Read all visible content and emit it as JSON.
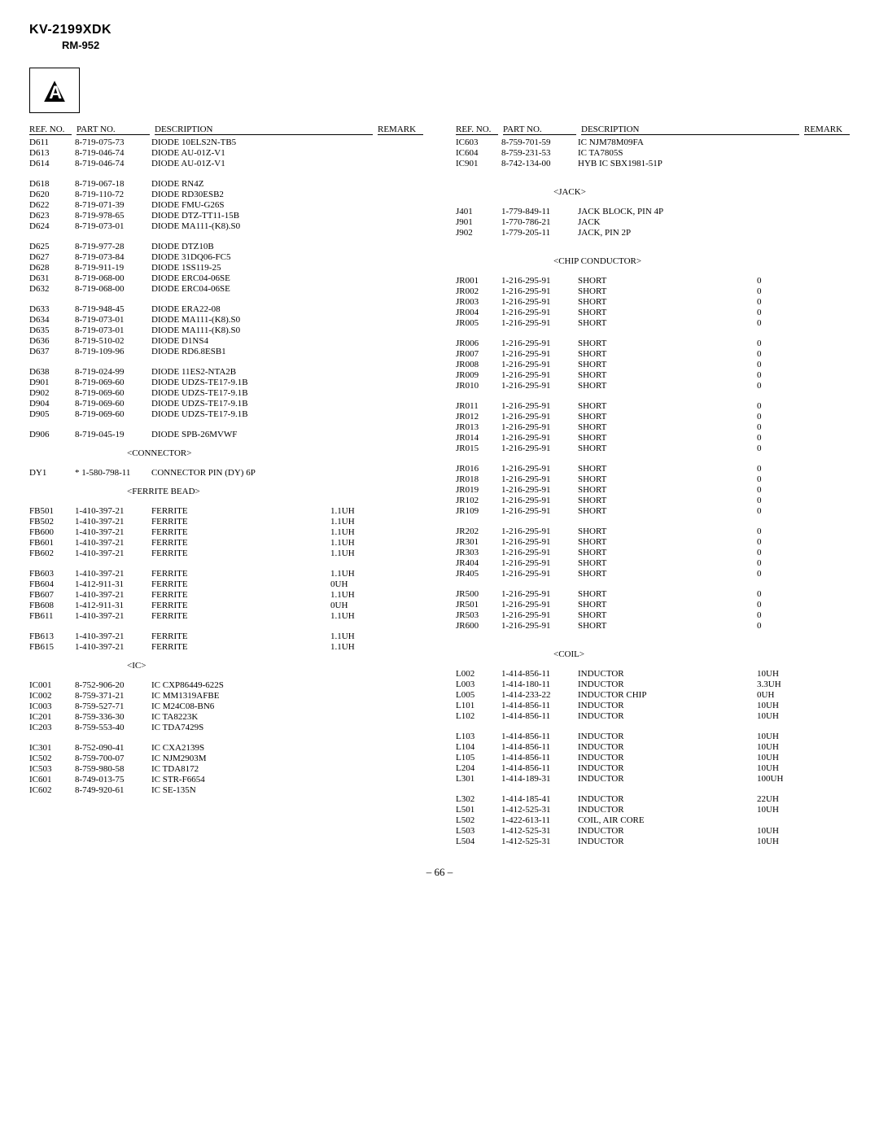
{
  "header": {
    "model": "KV-2199XDK",
    "sub": "RM-952",
    "triangle_letter": "A"
  },
  "col_headers": {
    "ref": "REF. NO.",
    "part": "PART NO.",
    "desc": "DESCRIPTION",
    "remark": "REMARK"
  },
  "sections": {
    "connector": "<CONNECTOR>",
    "ferrite": "<FERRITE BEAD>",
    "ic": "<IC>",
    "jack": "<JACK>",
    "chip": "<CHIP CONDUCTOR>",
    "coil": "<COIL>"
  },
  "left": {
    "g1": [
      {
        "ref": "D611",
        "part": "8-719-075-73",
        "desc": "DIODE 10ELS2N-TB5"
      },
      {
        "ref": "D613",
        "part": "8-719-046-74",
        "desc": "DIODE AU-01Z-V1"
      },
      {
        "ref": "D614",
        "part": "8-719-046-74",
        "desc": "DIODE AU-01Z-V1"
      }
    ],
    "g2": [
      {
        "ref": "D618",
        "part": "8-719-067-18",
        "desc": "DIODE RN4Z"
      },
      {
        "ref": "D620",
        "part": "8-719-110-72",
        "desc": "DIODE RD30ESB2"
      },
      {
        "ref": "D622",
        "part": "8-719-071-39",
        "desc": "DIODE FMU-G26S"
      },
      {
        "ref": "D623",
        "part": "8-719-978-65",
        "desc": "DIODE DTZ-TT11-15B"
      },
      {
        "ref": "D624",
        "part": "8-719-073-01",
        "desc": "DIODE MA111-(K8).S0"
      }
    ],
    "g3": [
      {
        "ref": "D625",
        "part": "8-719-977-28",
        "desc": "DIODE DTZ10B"
      },
      {
        "ref": "D627",
        "part": "8-719-073-84",
        "desc": "DIODE 31DQ06-FC5"
      },
      {
        "ref": "D628",
        "part": "8-719-911-19",
        "desc": "DIODE 1SS119-25"
      },
      {
        "ref": "D631",
        "part": "8-719-068-00",
        "desc": "DIODE ERC04-06SE"
      },
      {
        "ref": "D632",
        "part": "8-719-068-00",
        "desc": "DIODE ERC04-06SE"
      }
    ],
    "g4": [
      {
        "ref": "D633",
        "part": "8-719-948-45",
        "desc": "DIODE ERA22-08"
      },
      {
        "ref": "D634",
        "part": "8-719-073-01",
        "desc": "DIODE MA111-(K8).S0"
      },
      {
        "ref": "D635",
        "part": "8-719-073-01",
        "desc": "DIODE MA111-(K8).S0"
      },
      {
        "ref": "D636",
        "part": "8-719-510-02",
        "desc": "DIODE D1NS4"
      },
      {
        "ref": "D637",
        "part": "8-719-109-96",
        "desc": "DIODE RD6.8ESB1"
      }
    ],
    "g5": [
      {
        "ref": "D638",
        "part": "8-719-024-99",
        "desc": "DIODE 11ES2-NTA2B"
      },
      {
        "ref": "D901",
        "part": "8-719-069-60",
        "desc": "DIODE UDZS-TE17-9.1B"
      },
      {
        "ref": "D902",
        "part": "8-719-069-60",
        "desc": "DIODE UDZS-TE17-9.1B"
      },
      {
        "ref": "D904",
        "part": "8-719-069-60",
        "desc": "DIODE UDZS-TE17-9.1B"
      },
      {
        "ref": "D905",
        "part": "8-719-069-60",
        "desc": "DIODE UDZS-TE17-9.1B"
      }
    ],
    "g6": [
      {
        "ref": "D906",
        "part": "8-719-045-19",
        "desc": "DIODE SPB-26MVWF"
      }
    ],
    "g7": [
      {
        "ref": "DY1",
        "part": "* 1-580-798-11",
        "desc": "CONNECTOR PIN (DY) 6P"
      }
    ],
    "g8": [
      {
        "ref": "FB501",
        "part": "1-410-397-21",
        "desc": "FERRITE",
        "val": "1.1UH"
      },
      {
        "ref": "FB502",
        "part": "1-410-397-21",
        "desc": "FERRITE",
        "val": "1.1UH"
      },
      {
        "ref": "FB600",
        "part": "1-410-397-21",
        "desc": "FERRITE",
        "val": "1.1UH"
      },
      {
        "ref": "FB601",
        "part": "1-410-397-21",
        "desc": "FERRITE",
        "val": "1.1UH"
      },
      {
        "ref": "FB602",
        "part": "1-410-397-21",
        "desc": "FERRITE",
        "val": "1.1UH"
      }
    ],
    "g9": [
      {
        "ref": "FB603",
        "part": "1-410-397-21",
        "desc": "FERRITE",
        "val": "1.1UH"
      },
      {
        "ref": "FB604",
        "part": "1-412-911-31",
        "desc": "FERRITE",
        "val": "0UH"
      },
      {
        "ref": "FB607",
        "part": "1-410-397-21",
        "desc": "FERRITE",
        "val": "1.1UH"
      },
      {
        "ref": "FB608",
        "part": "1-412-911-31",
        "desc": "FERRITE",
        "val": "0UH"
      },
      {
        "ref": "FB611",
        "part": "1-410-397-21",
        "desc": "FERRITE",
        "val": "1.1UH"
      }
    ],
    "g10": [
      {
        "ref": "FB613",
        "part": "1-410-397-21",
        "desc": "FERRITE",
        "val": "1.1UH"
      },
      {
        "ref": "FB615",
        "part": "1-410-397-21",
        "desc": "FERRITE",
        "val": "1.1UH"
      }
    ],
    "g11": [
      {
        "ref": "IC001",
        "part": "8-752-906-20",
        "desc": "IC CXP86449-622S"
      },
      {
        "ref": "IC002",
        "part": "8-759-371-21",
        "desc": "IC MM1319AFBE"
      },
      {
        "ref": "IC003",
        "part": "8-759-527-71",
        "desc": "IC M24C08-BN6"
      },
      {
        "ref": "IC201",
        "part": "8-759-336-30",
        "desc": "IC TA8223K"
      },
      {
        "ref": "IC203",
        "part": "8-759-553-40",
        "desc": "IC TDA7429S"
      }
    ],
    "g12": [
      {
        "ref": "IC301",
        "part": "8-752-090-41",
        "desc": "IC CXA2139S"
      },
      {
        "ref": "IC502",
        "part": "8-759-700-07",
        "desc": "IC NJM2903M"
      },
      {
        "ref": "IC503",
        "part": "8-759-980-58",
        "desc": "IC TDA8172"
      },
      {
        "ref": "IC601",
        "part": "8-749-013-75",
        "desc": "IC STR-F6654"
      },
      {
        "ref": "IC602",
        "part": "8-749-920-61",
        "desc": "IC SE-135N"
      }
    ]
  },
  "right": {
    "g1": [
      {
        "ref": "IC603",
        "part": "8-759-701-59",
        "desc": "IC NJM78M09FA"
      },
      {
        "ref": "IC604",
        "part": "8-759-231-53",
        "desc": "IC TA7805S"
      },
      {
        "ref": "IC901",
        "part": "8-742-134-00",
        "desc": "HYB IC SBX1981-51P"
      }
    ],
    "g2": [
      {
        "ref": "J401",
        "part": "1-779-849-11",
        "desc": "JACK BLOCK, PIN 4P"
      },
      {
        "ref": "J901",
        "part": "1-770-786-21",
        "desc": "JACK"
      },
      {
        "ref": "J902",
        "part": "1-779-205-11",
        "desc": "JACK, PIN 2P"
      }
    ],
    "g3": [
      {
        "ref": "JR001",
        "part": "1-216-295-91",
        "desc": "SHORT",
        "val": "0"
      },
      {
        "ref": "JR002",
        "part": "1-216-295-91",
        "desc": "SHORT",
        "val": "0"
      },
      {
        "ref": "JR003",
        "part": "1-216-295-91",
        "desc": "SHORT",
        "val": "0"
      },
      {
        "ref": "JR004",
        "part": "1-216-295-91",
        "desc": "SHORT",
        "val": "0"
      },
      {
        "ref": "JR005",
        "part": "1-216-295-91",
        "desc": "SHORT",
        "val": "0"
      }
    ],
    "g4": [
      {
        "ref": "JR006",
        "part": "1-216-295-91",
        "desc": "SHORT",
        "val": "0"
      },
      {
        "ref": "JR007",
        "part": "1-216-295-91",
        "desc": "SHORT",
        "val": "0"
      },
      {
        "ref": "JR008",
        "part": "1-216-295-91",
        "desc": "SHORT",
        "val": "0"
      },
      {
        "ref": "JR009",
        "part": "1-216-295-91",
        "desc": "SHORT",
        "val": "0"
      },
      {
        "ref": "JR010",
        "part": "1-216-295-91",
        "desc": "SHORT",
        "val": "0"
      }
    ],
    "g5": [
      {
        "ref": "JR011",
        "part": "1-216-295-91",
        "desc": "SHORT",
        "val": "0"
      },
      {
        "ref": "JR012",
        "part": "1-216-295-91",
        "desc": "SHORT",
        "val": "0"
      },
      {
        "ref": "JR013",
        "part": "1-216-295-91",
        "desc": "SHORT",
        "val": "0"
      },
      {
        "ref": "JR014",
        "part": "1-216-295-91",
        "desc": "SHORT",
        "val": "0"
      },
      {
        "ref": "JR015",
        "part": "1-216-295-91",
        "desc": "SHORT",
        "val": "0"
      }
    ],
    "g6": [
      {
        "ref": "JR016",
        "part": "1-216-295-91",
        "desc": "SHORT",
        "val": "0"
      },
      {
        "ref": "JR018",
        "part": "1-216-295-91",
        "desc": "SHORT",
        "val": "0"
      },
      {
        "ref": "JR019",
        "part": "1-216-295-91",
        "desc": "SHORT",
        "val": "0"
      },
      {
        "ref": "JR102",
        "part": "1-216-295-91",
        "desc": "SHORT",
        "val": "0"
      },
      {
        "ref": "JR109",
        "part": "1-216-295-91",
        "desc": "SHORT",
        "val": "0"
      }
    ],
    "g7": [
      {
        "ref": "JR202",
        "part": "1-216-295-91",
        "desc": "SHORT",
        "val": "0"
      },
      {
        "ref": "JR301",
        "part": "1-216-295-91",
        "desc": "SHORT",
        "val": "0"
      },
      {
        "ref": "JR303",
        "part": "1-216-295-91",
        "desc": "SHORT",
        "val": "0"
      },
      {
        "ref": "JR404",
        "part": "1-216-295-91",
        "desc": "SHORT",
        "val": "0"
      },
      {
        "ref": "JR405",
        "part": "1-216-295-91",
        "desc": "SHORT",
        "val": "0"
      }
    ],
    "g8": [
      {
        "ref": "JR500",
        "part": "1-216-295-91",
        "desc": "SHORT",
        "val": "0"
      },
      {
        "ref": "JR501",
        "part": "1-216-295-91",
        "desc": "SHORT",
        "val": "0"
      },
      {
        "ref": "JR503",
        "part": "1-216-295-91",
        "desc": "SHORT",
        "val": "0"
      },
      {
        "ref": "JR600",
        "part": "1-216-295-91",
        "desc": "SHORT",
        "val": "0"
      }
    ],
    "g9": [
      {
        "ref": "L002",
        "part": "1-414-856-11",
        "desc": "INDUCTOR",
        "val": "10UH"
      },
      {
        "ref": "L003",
        "part": "1-414-180-11",
        "desc": "INDUCTOR",
        "val": "3.3UH"
      },
      {
        "ref": "L005",
        "part": "1-414-233-22",
        "desc": "INDUCTOR CHIP",
        "val": "0UH"
      },
      {
        "ref": "L101",
        "part": "1-414-856-11",
        "desc": "INDUCTOR",
        "val": "10UH"
      },
      {
        "ref": "L102",
        "part": "1-414-856-11",
        "desc": "INDUCTOR",
        "val": "10UH"
      }
    ],
    "g10": [
      {
        "ref": "L103",
        "part": "1-414-856-11",
        "desc": "INDUCTOR",
        "val": "10UH"
      },
      {
        "ref": "L104",
        "part": "1-414-856-11",
        "desc": "INDUCTOR",
        "val": "10UH"
      },
      {
        "ref": "L105",
        "part": "1-414-856-11",
        "desc": "INDUCTOR",
        "val": "10UH"
      },
      {
        "ref": "L204",
        "part": "1-414-856-11",
        "desc": "INDUCTOR",
        "val": "10UH"
      },
      {
        "ref": "L301",
        "part": "1-414-189-31",
        "desc": "INDUCTOR",
        "val": "100UH"
      }
    ],
    "g11": [
      {
        "ref": "L302",
        "part": "1-414-185-41",
        "desc": "INDUCTOR",
        "val": "22UH"
      },
      {
        "ref": "L501",
        "part": "1-412-525-31",
        "desc": "INDUCTOR",
        "val": "10UH"
      },
      {
        "ref": "L502",
        "part": "1-422-613-11",
        "desc": "COIL, AIR CORE"
      },
      {
        "ref": "L503",
        "part": "1-412-525-31",
        "desc": "INDUCTOR",
        "val": "10UH"
      },
      {
        "ref": "L504",
        "part": "1-412-525-31",
        "desc": "INDUCTOR",
        "val": "10UH"
      }
    ]
  },
  "page_num": "– 66 –"
}
